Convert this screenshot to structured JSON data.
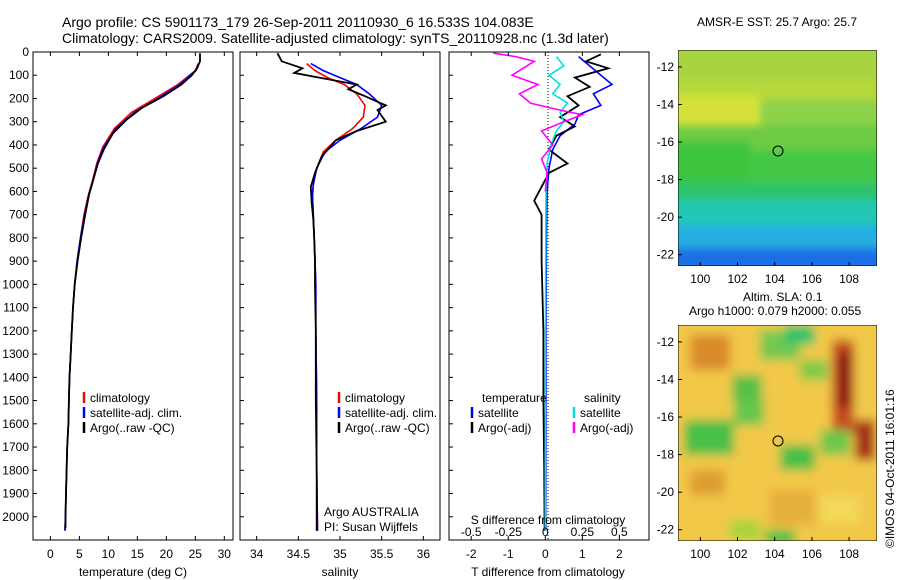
{
  "header": {
    "line1": "Argo profile: CS 5901173_179 26-Sep-2011 20110930_6 16.533S 104.083E",
    "line2": "Climatology: CARS2009. Satellite-adjusted climatology: synTS_20110928.nc (1.3d later)"
  },
  "colors": {
    "clim": "#ff0000",
    "sat": "#0000ff",
    "argo": "#000000",
    "sat_s": "#00e0e0",
    "argo_s": "#ff00ff"
  },
  "chart_data": [
    {
      "type": "line",
      "xlabel": "temperature (deg C)",
      "ylabel": "",
      "xlim": [
        -3,
        31.5
      ],
      "ylim": [
        2100,
        0
      ],
      "xticks": [
        0,
        5,
        10,
        15,
        20,
        25,
        30
      ],
      "yticks": [
        0,
        100,
        200,
        300,
        400,
        500,
        600,
        700,
        800,
        900,
        1000,
        1100,
        1200,
        1300,
        1400,
        1500,
        1600,
        1700,
        1800,
        1900,
        2000
      ],
      "legend": [
        "climatology",
        "satellite-adj. clim.",
        "Argo(..raw -QC)"
      ],
      "series": [
        {
          "name": "climatology",
          "color": "clim",
          "points": [
            [
              25.5,
              50
            ],
            [
              25,
              80
            ],
            [
              22,
              140
            ],
            [
              18,
              200
            ],
            [
              14,
              260
            ],
            [
              11,
              330
            ],
            [
              9,
              410
            ],
            [
              8,
              480
            ],
            [
              7.2,
              560
            ],
            [
              6.5,
              620
            ],
            [
              5.8,
              700
            ],
            [
              5.2,
              800
            ],
            [
              4.6,
              900
            ],
            [
              4.2,
              1000
            ],
            [
              3.9,
              1100
            ],
            [
              3.7,
              1200
            ],
            [
              3.5,
              1300
            ],
            [
              3.3,
              1400
            ],
            [
              3.2,
              1500
            ],
            [
              3.1,
              1600
            ],
            [
              2.9,
              1700
            ],
            [
              2.8,
              1800
            ],
            [
              2.7,
              1900
            ],
            [
              2.6,
              2000
            ],
            [
              2.5,
              2060
            ]
          ]
        },
        {
          "name": "satellite-adj. clim.",
          "color": "sat",
          "points": [
            [
              25.6,
              50
            ],
            [
              25.1,
              80
            ],
            [
              22.3,
              140
            ],
            [
              18.5,
              200
            ],
            [
              14.5,
              260
            ],
            [
              11.3,
              330
            ],
            [
              9.2,
              410
            ],
            [
              8.1,
              480
            ],
            [
              7.3,
              560
            ],
            [
              6.6,
              620
            ],
            [
              5.9,
              700
            ],
            [
              5.2,
              800
            ],
            [
              4.6,
              900
            ],
            [
              4.2,
              1000
            ],
            [
              3.9,
              1100
            ],
            [
              3.7,
              1200
            ],
            [
              3.5,
              1300
            ],
            [
              3.3,
              1400
            ],
            [
              3.2,
              1500
            ],
            [
              3.1,
              1600
            ],
            [
              2.9,
              1700
            ],
            [
              2.8,
              1800
            ],
            [
              2.7,
              1900
            ],
            [
              2.6,
              2000
            ],
            [
              2.5,
              2060
            ]
          ]
        },
        {
          "name": "Argo(..raw -QC)",
          "color": "argo",
          "points": [
            [
              25.8,
              5
            ],
            [
              25.8,
              40
            ],
            [
              25.3,
              70
            ],
            [
              24.4,
              100
            ],
            [
              22.6,
              140
            ],
            [
              19.5,
              190
            ],
            [
              15.8,
              240
            ],
            [
              13.2,
              290
            ],
            [
              10.8,
              350
            ],
            [
              9.2,
              420
            ],
            [
              8.2,
              480
            ],
            [
              7.4,
              550
            ],
            [
              6.7,
              610
            ],
            [
              6,
              700
            ],
            [
              5.3,
              800
            ],
            [
              4.7,
              900
            ],
            [
              4.2,
              1000
            ],
            [
              3.9,
              1100
            ],
            [
              3.7,
              1200
            ],
            [
              3.5,
              1300
            ],
            [
              3.3,
              1400
            ],
            [
              3.2,
              1500
            ],
            [
              3.1,
              1600
            ],
            [
              2.9,
              1700
            ],
            [
              2.8,
              1800
            ],
            [
              2.7,
              1900
            ],
            [
              2.6,
              2000
            ],
            [
              2.6,
              2050
            ]
          ]
        }
      ]
    },
    {
      "type": "line",
      "xlabel": "salinity",
      "xlim": [
        33.8,
        36.2
      ],
      "ylim": [
        2100,
        0
      ],
      "xticks": [
        34,
        34.5,
        35,
        35.5,
        36
      ],
      "legend": [
        "climatology",
        "satellite-adj. clim.",
        "Argo(..raw -QC)"
      ],
      "annotation": [
        "Argo AUSTRALIA",
        "PI: Susan Wijffels"
      ],
      "series": [
        {
          "name": "climatology",
          "color": "clim",
          "points": [
            [
              34.6,
              50
            ],
            [
              34.7,
              80
            ],
            [
              34.85,
              110
            ],
            [
              35.05,
              140
            ],
            [
              35.2,
              180
            ],
            [
              35.3,
              230
            ],
            [
              35.28,
              280
            ],
            [
              35.15,
              330
            ],
            [
              34.95,
              380
            ],
            [
              34.8,
              430
            ],
            [
              34.72,
              500
            ],
            [
              34.68,
              570
            ],
            [
              34.67,
              620
            ],
            [
              34.68,
              700
            ],
            [
              34.69,
              800
            ],
            [
              34.7,
              900
            ],
            [
              34.71,
              1000
            ],
            [
              34.71,
              1200
            ],
            [
              34.72,
              1500
            ],
            [
              34.72,
              1800
            ],
            [
              34.73,
              2060
            ]
          ]
        },
        {
          "name": "satellite-adj. clim.",
          "color": "sat",
          "points": [
            [
              34.65,
              50
            ],
            [
              34.8,
              80
            ],
            [
              35,
              110
            ],
            [
              35.2,
              140
            ],
            [
              35.35,
              180
            ],
            [
              35.5,
              230
            ],
            [
              35.45,
              280
            ],
            [
              35.25,
              330
            ],
            [
              35,
              380
            ],
            [
              34.82,
              430
            ],
            [
              34.72,
              500
            ],
            [
              34.68,
              570
            ],
            [
              34.67,
              620
            ],
            [
              34.68,
              700
            ],
            [
              34.69,
              800
            ],
            [
              34.7,
              900
            ],
            [
              34.71,
              1000
            ],
            [
              34.71,
              1200
            ],
            [
              34.72,
              1500
            ],
            [
              34.72,
              1800
            ],
            [
              34.73,
              2060
            ]
          ]
        },
        {
          "name": "Argo(..raw -QC)",
          "color": "argo",
          "points": [
            [
              34.25,
              5
            ],
            [
              34.3,
              40
            ],
            [
              34.55,
              70
            ],
            [
              34.45,
              90
            ],
            [
              34.75,
              110
            ],
            [
              35.2,
              140
            ],
            [
              35.1,
              160
            ],
            [
              35.3,
              190
            ],
            [
              35.55,
              230
            ],
            [
              35.45,
              250
            ],
            [
              35.55,
              300
            ],
            [
              35.2,
              340
            ],
            [
              34.95,
              380
            ],
            [
              34.78,
              450
            ],
            [
              34.7,
              520
            ],
            [
              34.65,
              580
            ],
            [
              34.66,
              650
            ],
            [
              34.68,
              720
            ],
            [
              34.69,
              800
            ],
            [
              34.7,
              900
            ],
            [
              34.7,
              1000
            ],
            [
              34.71,
              1200
            ],
            [
              34.71,
              1500
            ],
            [
              34.72,
              1800
            ],
            [
              34.72,
              2060
            ]
          ]
        }
      ]
    },
    {
      "type": "line",
      "xlabel": "T difference from climatology",
      "xlabel_top": "S difference from climatology",
      "xlim": [
        -2.6,
        2.8
      ],
      "ylim": [
        2100,
        0
      ],
      "xticks": [
        -2,
        -1,
        0,
        1,
        2
      ],
      "top_ticks": [
        "-0.5",
        "-0.25",
        "0",
        "0.25",
        "0.5"
      ],
      "top_ticks_x": [
        -2,
        -1,
        0,
        1,
        2
      ],
      "legend_titles": [
        "temperature",
        "salinity"
      ],
      "legend_t": [
        "satellite",
        "Argo(-adj)"
      ],
      "legend_s": [
        "satellite",
        "Argo(-adj)"
      ],
      "series": [
        {
          "name": "satellite",
          "color": "sat",
          "points": [
            [
              0.9,
              20
            ],
            [
              1.2,
              60
            ],
            [
              1.5,
              100
            ],
            [
              1.8,
              140
            ],
            [
              1.3,
              180
            ],
            [
              1.5,
              230
            ],
            [
              0.9,
              270
            ],
            [
              0.8,
              310
            ],
            [
              0.4,
              360
            ],
            [
              0.2,
              420
            ],
            [
              0.1,
              500
            ],
            [
              0.05,
              600
            ],
            [
              0.03,
              800
            ],
            [
              0.02,
              1200
            ],
            [
              0.01,
              2060
            ]
          ]
        },
        {
          "name": "Argo(-adj)",
          "color": "argo",
          "points": [
            [
              1.5,
              10
            ],
            [
              1.1,
              40
            ],
            [
              1.7,
              70
            ],
            [
              0.8,
              110
            ],
            [
              1.2,
              150
            ],
            [
              0.6,
              190
            ],
            [
              0.9,
              230
            ],
            [
              0.4,
              280
            ],
            [
              0.8,
              320
            ],
            [
              0.3,
              360
            ],
            [
              0.1,
              420
            ],
            [
              0.6,
              480
            ],
            [
              0.1,
              520
            ],
            [
              -0.1,
              580
            ],
            [
              -0.3,
              640
            ],
            [
              -0.1,
              700
            ],
            [
              -0.1,
              900
            ],
            [
              -0.05,
              1200
            ],
            [
              -0.05,
              1500
            ],
            [
              -0.03,
              1800
            ],
            [
              -0.02,
              2060
            ]
          ]
        },
        {
          "name": "salinity satellite",
          "color": "sat_s",
          "points": [
            [
              0.3,
              20
            ],
            [
              0.5,
              60
            ],
            [
              0.1,
              100
            ],
            [
              0.4,
              140
            ],
            [
              0.2,
              180
            ],
            [
              0.6,
              220
            ],
            [
              0.4,
              260
            ],
            [
              0.5,
              300
            ],
            [
              0.3,
              340
            ],
            [
              0.15,
              400
            ],
            [
              0.05,
              480
            ],
            [
              0.02,
              600
            ],
            [
              0.01,
              900
            ],
            [
              0,
              1400
            ],
            [
              0,
              2060
            ]
          ]
        },
        {
          "name": "salinity Argo(-adj)",
          "color": "argo_s",
          "points": [
            [
              -1.4,
              5
            ],
            [
              -0.8,
              20
            ],
            [
              -0.3,
              40
            ],
            [
              -0.6,
              70
            ],
            [
              -0.9,
              100
            ],
            [
              -0.2,
              140
            ],
            [
              -0.7,
              180
            ],
            [
              -0.4,
              220
            ],
            [
              0.4,
              250
            ],
            [
              1,
              270
            ],
            [
              0.5,
              300
            ],
            [
              -0.1,
              340
            ],
            [
              0.2,
              400
            ],
            [
              -0.1,
              460
            ],
            [
              0.05,
              520
            ],
            [
              0,
              600
            ]
          ]
        }
      ]
    },
    {
      "type": "heatmap",
      "title": "AMSR-E SST: 25.7 Argo: 25.7",
      "xlim": [
        98.8,
        109.5
      ],
      "ylim": [
        -22.6,
        -11.1
      ],
      "xticks": [
        100,
        102,
        104,
        106,
        108
      ],
      "yticks": [
        -12,
        -14,
        -16,
        -18,
        -20,
        -22
      ],
      "marker": [
        104.1,
        -16.5
      ]
    },
    {
      "type": "heatmap",
      "title_lines": [
        "Altim. SLA: 0.1",
        "Argo h1000: 0.079 h2000: 0.055"
      ],
      "xlim": [
        98.8,
        109.5
      ],
      "ylim": [
        -22.6,
        -11.1
      ],
      "xticks": [
        100,
        102,
        104,
        106,
        108
      ],
      "yticks": [
        -12,
        -14,
        -16,
        -18,
        -20,
        -22
      ],
      "marker": [
        104.1,
        -16.5
      ]
    }
  ],
  "side_text": "©IMOS 04-Oct-2011 16:01:16"
}
